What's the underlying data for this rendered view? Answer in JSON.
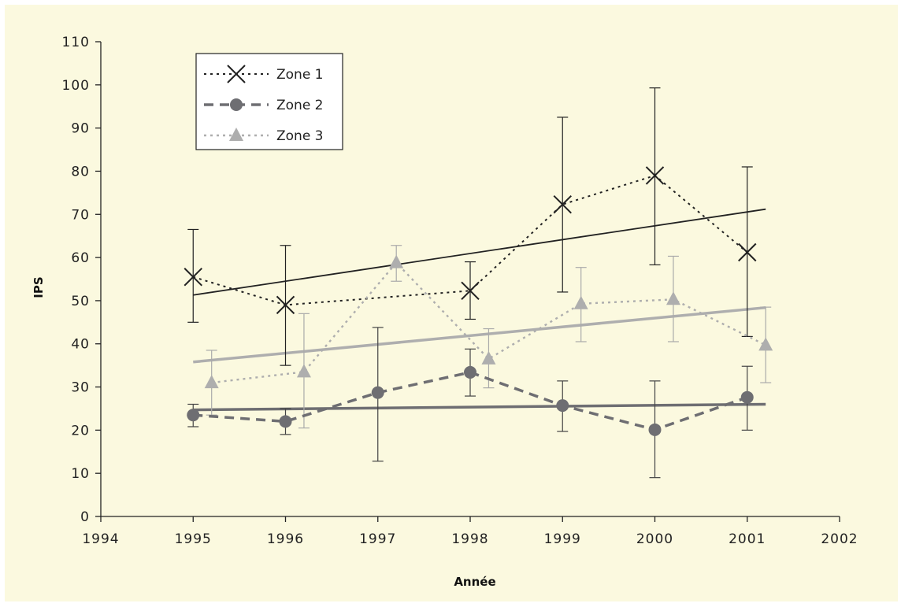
{
  "chart_data": {
    "type": "line",
    "xlabel": "Année",
    "ylabel": "IPS",
    "xlim": [
      1994,
      2002
    ],
    "ylim": [
      0,
      110
    ],
    "x_ticks": [
      1994,
      1995,
      1996,
      1997,
      1998,
      1999,
      2000,
      2001,
      2002
    ],
    "y_ticks": [
      0,
      10,
      20,
      30,
      40,
      50,
      60,
      70,
      80,
      90,
      100,
      110
    ],
    "grid": false,
    "legend_position": "top-left",
    "series": [
      {
        "name": "Zone 1",
        "color": "#222222",
        "marker": "x",
        "line_style": "dotted",
        "x": [
          1995,
          1996,
          1998,
          1999,
          2000,
          2001
        ],
        "y": [
          55.5,
          49,
          52.3,
          72.3,
          79,
          61.2
        ],
        "err_low": [
          45,
          35,
          45.7,
          52,
          58.3,
          41.7
        ],
        "err_high": [
          66.5,
          62.8,
          59,
          92.5,
          99.3,
          81
        ],
        "trend": [
          51.3,
          71.2
        ]
      },
      {
        "name": "Zone 2",
        "color": "#6e6e72",
        "marker": "circle",
        "line_style": "dashed",
        "x": [
          1995,
          1996,
          1997,
          1998,
          1999,
          2000,
          2001
        ],
        "y": [
          23.5,
          22,
          28.7,
          33.4,
          25.7,
          20.1,
          27.6
        ],
        "err_low": [
          20.8,
          19,
          12.8,
          27.9,
          19.7,
          9,
          20
        ],
        "err_high": [
          26,
          25,
          43.8,
          38.8,
          31.4,
          31.4,
          34.8
        ],
        "trend": [
          24.7,
          26.0
        ]
      },
      {
        "name": "Zone 3",
        "color": "#aeaeae",
        "marker": "triangle",
        "line_style": "dotted",
        "x": [
          1995.2,
          1996.2,
          1997.2,
          1998.2,
          1999.2,
          2000.2,
          2001.2
        ],
        "y": [
          31,
          33.5,
          58.8,
          36.5,
          49.3,
          50.3,
          39.7
        ],
        "err_low": [
          23.5,
          20.5,
          54.5,
          29.8,
          40.5,
          40.5,
          31
        ],
        "err_high": [
          38.5,
          47,
          62.8,
          43.5,
          57.7,
          60.3,
          48.5
        ],
        "trend": [
          35.8,
          48.4
        ]
      }
    ],
    "trend_x": [
      1995,
      2001.2
    ]
  }
}
